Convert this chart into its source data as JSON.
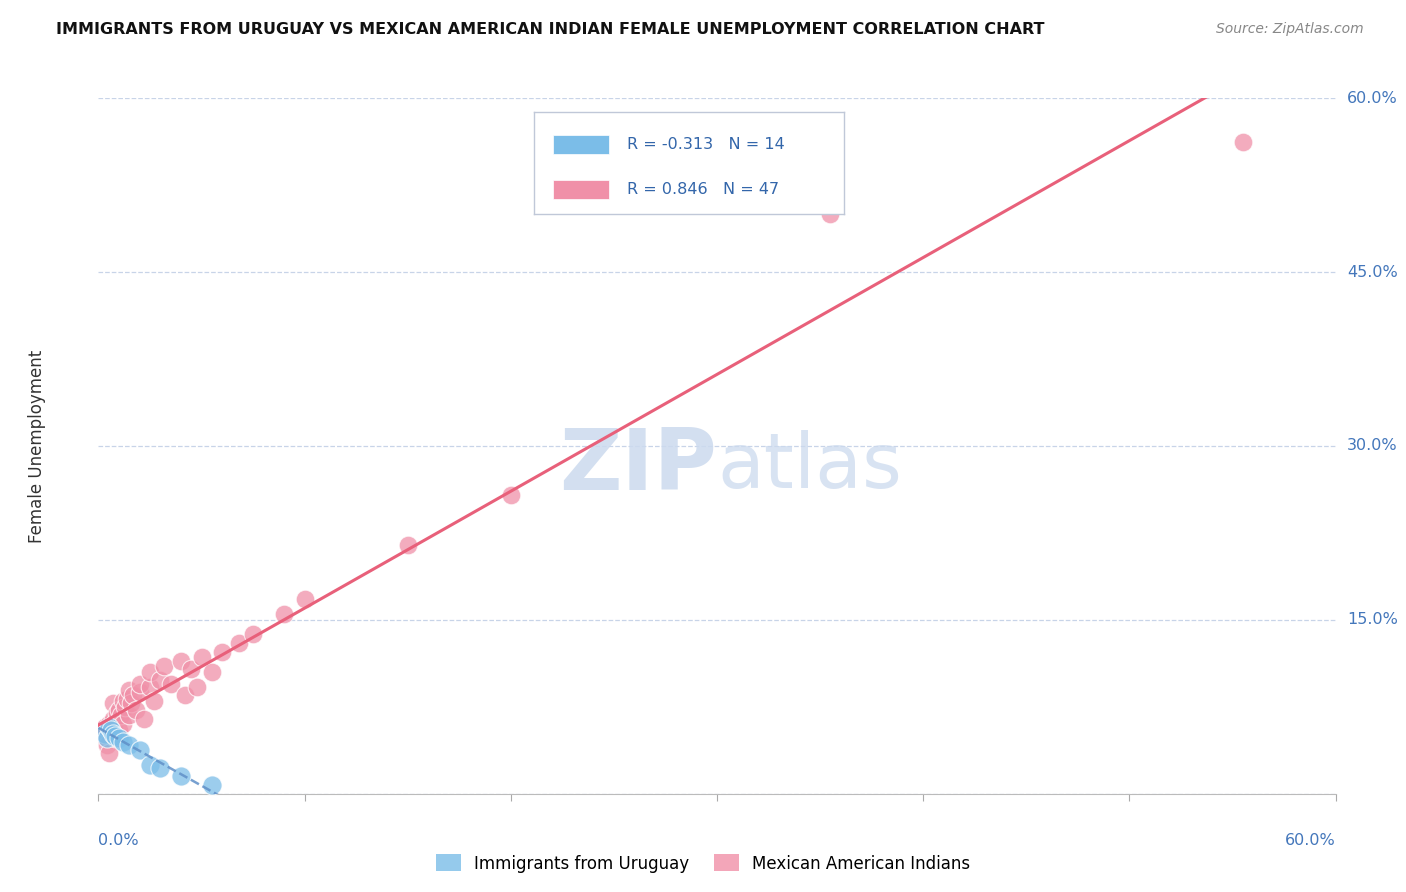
{
  "title": "IMMIGRANTS FROM URUGUAY VS MEXICAN AMERICAN INDIAN FEMALE UNEMPLOYMENT CORRELATION CHART",
  "source": "Source: ZipAtlas.com",
  "ylabel": "Female Unemployment",
  "watermark": "ZIPatlas",
  "series1_label": "Immigrants from Uruguay",
  "series2_label": "Mexican American Indians",
  "series1_color": "#7bbde8",
  "series2_color": "#f090a8",
  "series1_line_color": "#6090c8",
  "series2_line_color": "#e8607a",
  "series1_R": -0.313,
  "series1_N": 14,
  "series2_R": 0.846,
  "series2_N": 47,
  "xlim": [
    0.0,
    0.6
  ],
  "ylim": [
    0.0,
    0.6
  ],
  "background_color": "#ffffff",
  "grid_color": "#c8d4e8",
  "tick_color": "#4477bb",
  "legend_text_color": "#3366aa",
  "series1_scatter": [
    [
      0.003,
      0.052
    ],
    [
      0.004,
      0.048
    ],
    [
      0.005,
      0.058
    ],
    [
      0.006,
      0.055
    ],
    [
      0.007,
      0.052
    ],
    [
      0.008,
      0.05
    ],
    [
      0.01,
      0.048
    ],
    [
      0.012,
      0.045
    ],
    [
      0.015,
      0.042
    ],
    [
      0.02,
      0.038
    ],
    [
      0.025,
      0.025
    ],
    [
      0.03,
      0.022
    ],
    [
      0.04,
      0.015
    ],
    [
      0.055,
      0.008
    ]
  ],
  "series2_scatter": [
    [
      0.002,
      0.05
    ],
    [
      0.003,
      0.058
    ],
    [
      0.004,
      0.042
    ],
    [
      0.005,
      0.06
    ],
    [
      0.005,
      0.035
    ],
    [
      0.006,
      0.055
    ],
    [
      0.007,
      0.065
    ],
    [
      0.007,
      0.078
    ],
    [
      0.008,
      0.048
    ],
    [
      0.008,
      0.062
    ],
    [
      0.009,
      0.07
    ],
    [
      0.01,
      0.055
    ],
    [
      0.01,
      0.072
    ],
    [
      0.011,
      0.068
    ],
    [
      0.012,
      0.06
    ],
    [
      0.012,
      0.08
    ],
    [
      0.013,
      0.075
    ],
    [
      0.014,
      0.082
    ],
    [
      0.015,
      0.068
    ],
    [
      0.015,
      0.09
    ],
    [
      0.016,
      0.078
    ],
    [
      0.017,
      0.085
    ],
    [
      0.018,
      0.072
    ],
    [
      0.02,
      0.088
    ],
    [
      0.02,
      0.095
    ],
    [
      0.022,
      0.065
    ],
    [
      0.025,
      0.092
    ],
    [
      0.025,
      0.105
    ],
    [
      0.027,
      0.08
    ],
    [
      0.03,
      0.098
    ],
    [
      0.032,
      0.11
    ],
    [
      0.035,
      0.095
    ],
    [
      0.04,
      0.115
    ],
    [
      0.042,
      0.085
    ],
    [
      0.045,
      0.108
    ],
    [
      0.048,
      0.092
    ],
    [
      0.05,
      0.118
    ],
    [
      0.055,
      0.105
    ],
    [
      0.06,
      0.122
    ],
    [
      0.068,
      0.13
    ],
    [
      0.075,
      0.138
    ],
    [
      0.09,
      0.155
    ],
    [
      0.1,
      0.168
    ],
    [
      0.15,
      0.215
    ],
    [
      0.2,
      0.258
    ],
    [
      0.355,
      0.5
    ],
    [
      0.555,
      0.562
    ]
  ]
}
